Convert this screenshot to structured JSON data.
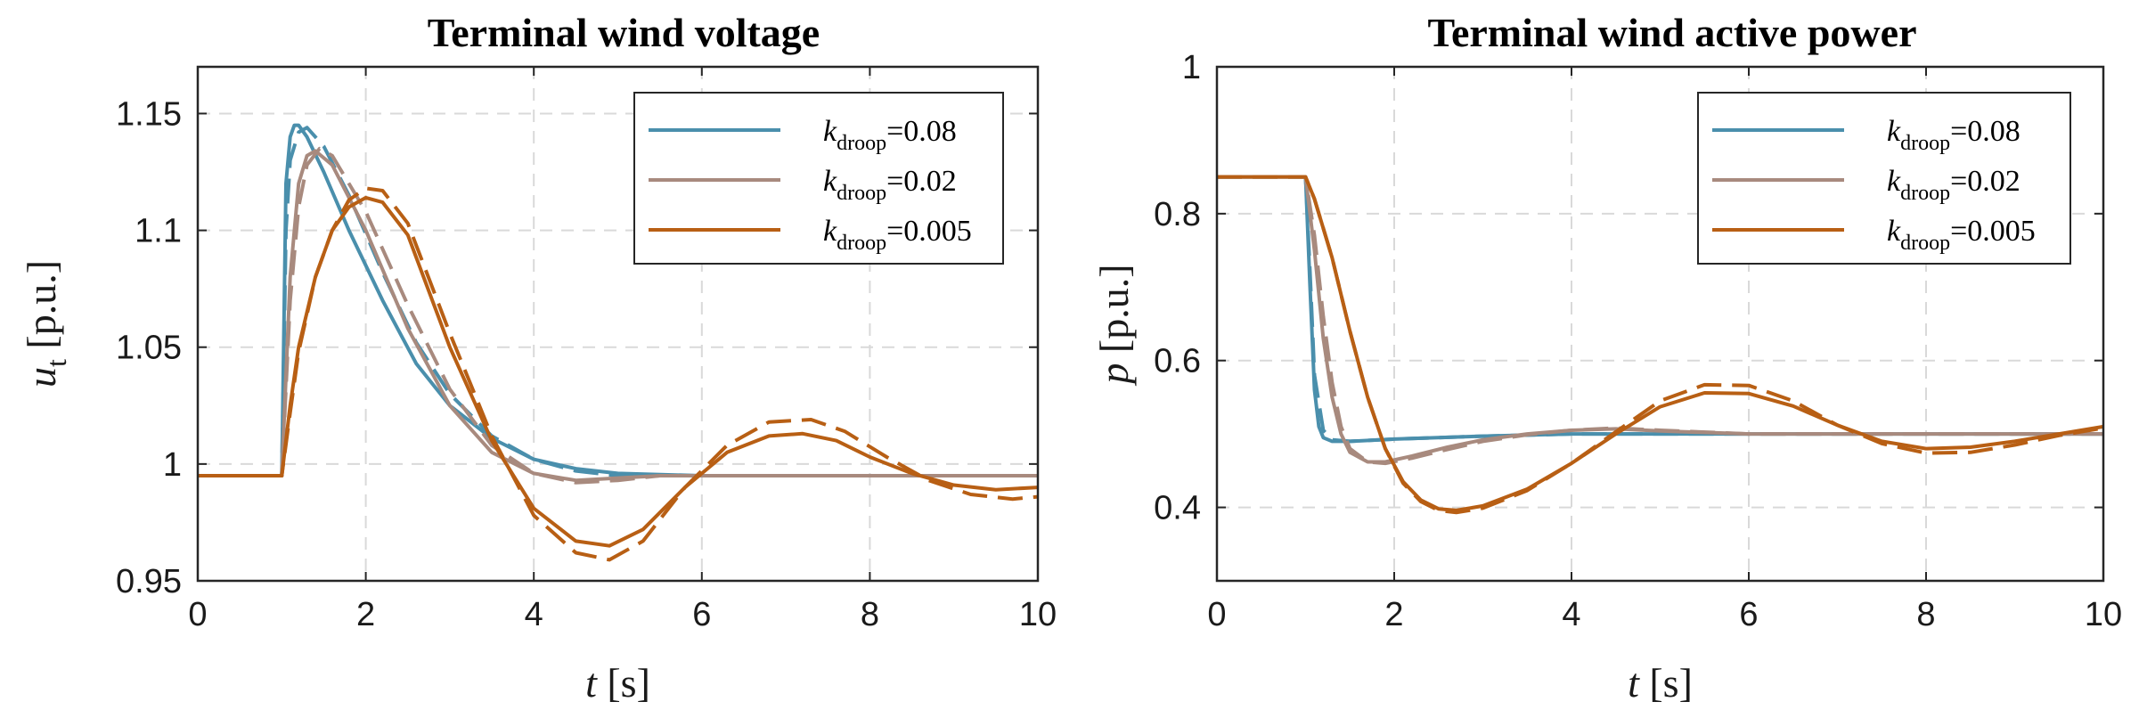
{
  "chart_data": [
    {
      "type": "line",
      "title": "Terminal wind voltage",
      "xlabel": {
        "var": "t",
        "unit": "[s]"
      },
      "ylabel": {
        "var": "u",
        "sub": "t",
        "unit": "[p.u.]"
      },
      "xlim": [
        0,
        10
      ],
      "ylim": [
        0.95,
        1.17
      ],
      "xticks": [
        "0",
        "2",
        "4",
        "6",
        "8",
        "10"
      ],
      "xtick_values": [
        0,
        2,
        4,
        6,
        8,
        10
      ],
      "yticks": [
        "0.95",
        "1",
        "1.05",
        "1.1",
        "1.15"
      ],
      "ytick_values": [
        0.95,
        1.0,
        1.05,
        1.1,
        1.15
      ],
      "grid": true,
      "legend_position": "top-right",
      "legend": [
        {
          "var": "k",
          "sub": "droop",
          "value": "=0.08",
          "color": "#4a8fac"
        },
        {
          "var": "k",
          "sub": "droop",
          "value": "=0.02",
          "color": "#a88a7e"
        },
        {
          "var": "k",
          "sub": "droop",
          "value": "=0.005",
          "color": "#b85f14"
        }
      ],
      "series": [
        {
          "color": "#4a8fac",
          "style": "solid",
          "x": [
            0,
            1.0,
            1.05,
            1.1,
            1.15,
            1.2,
            1.3,
            1.5,
            1.8,
            2.2,
            2.6,
            3.0,
            3.5,
            4.0,
            4.5,
            5.0,
            6.0,
            10.0
          ],
          "y": [
            0.995,
            0.995,
            1.12,
            1.14,
            1.145,
            1.145,
            1.14,
            1.125,
            1.1,
            1.07,
            1.043,
            1.025,
            1.011,
            1.002,
            0.998,
            0.996,
            0.995,
            0.995
          ]
        },
        {
          "color": "#4a8fac",
          "style": "dashed",
          "x": [
            0,
            1.0,
            1.05,
            1.1,
            1.2,
            1.3,
            1.5,
            1.8,
            2.2,
            2.6,
            3.0,
            3.5,
            4.0,
            4.5,
            5.0,
            6.0,
            10.0
          ],
          "y": [
            0.995,
            0.995,
            1.1,
            1.13,
            1.142,
            1.144,
            1.136,
            1.115,
            1.082,
            1.052,
            1.03,
            1.012,
            1.002,
            0.997,
            0.995,
            0.995,
            0.995
          ]
        },
        {
          "color": "#a88a7e",
          "style": "solid",
          "x": [
            0,
            1.0,
            1.1,
            1.2,
            1.3,
            1.4,
            1.6,
            2.0,
            2.5,
            3.0,
            3.5,
            4.0,
            4.5,
            5.0,
            5.5,
            6.0,
            7.0,
            10.0
          ],
          "y": [
            0.995,
            0.995,
            1.08,
            1.12,
            1.132,
            1.134,
            1.128,
            1.1,
            1.058,
            1.025,
            1.005,
            0.996,
            0.993,
            0.994,
            0.995,
            0.995,
            0.995,
            0.995
          ]
        },
        {
          "color": "#a88a7e",
          "style": "dashed",
          "x": [
            0,
            1.0,
            1.1,
            1.2,
            1.3,
            1.45,
            1.6,
            2.0,
            2.5,
            3.0,
            3.5,
            4.0,
            4.5,
            5.0,
            5.5,
            6.0,
            7.0,
            10.0
          ],
          "y": [
            0.995,
            0.995,
            1.07,
            1.11,
            1.128,
            1.135,
            1.132,
            1.108,
            1.068,
            1.032,
            1.008,
            0.996,
            0.992,
            0.993,
            0.995,
            0.995,
            0.995,
            0.995
          ]
        },
        {
          "color": "#b85f14",
          "style": "solid",
          "x": [
            0,
            1.0,
            1.1,
            1.2,
            1.4,
            1.6,
            1.8,
            2.0,
            2.2,
            2.5,
            3.0,
            3.5,
            4.0,
            4.5,
            4.9,
            5.3,
            5.8,
            6.3,
            6.8,
            7.2,
            7.6,
            8.0,
            8.5,
            9.0,
            9.5,
            10.0
          ],
          "y": [
            0.995,
            0.995,
            1.025,
            1.05,
            1.08,
            1.1,
            1.11,
            1.114,
            1.112,
            1.098,
            1.05,
            1.01,
            0.981,
            0.967,
            0.965,
            0.972,
            0.99,
            1.005,
            1.012,
            1.013,
            1.01,
            1.003,
            0.996,
            0.991,
            0.989,
            0.99
          ]
        },
        {
          "color": "#b85f14",
          "style": "dashed",
          "x": [
            0,
            1.0,
            1.1,
            1.2,
            1.4,
            1.6,
            1.8,
            2.0,
            2.2,
            2.5,
            3.0,
            3.5,
            4.0,
            4.5,
            4.9,
            5.3,
            5.8,
            6.3,
            6.8,
            7.3,
            7.7,
            8.2,
            8.7,
            9.2,
            9.7,
            10.0
          ],
          "y": [
            0.995,
            0.995,
            1.022,
            1.048,
            1.08,
            1.1,
            1.113,
            1.118,
            1.117,
            1.103,
            1.056,
            1.012,
            0.978,
            0.962,
            0.959,
            0.967,
            0.99,
            1.008,
            1.018,
            1.019,
            1.014,
            1.003,
            0.993,
            0.987,
            0.985,
            0.986
          ]
        }
      ]
    },
    {
      "type": "line",
      "title": "Terminal wind active power",
      "xlabel": {
        "var": "t",
        "unit": "[s]"
      },
      "ylabel": {
        "var": "p",
        "sub": "",
        "unit": "[p.u.]"
      },
      "xlim": [
        0,
        10
      ],
      "ylim": [
        0.3,
        1.0
      ],
      "xticks": [
        "0",
        "2",
        "4",
        "6",
        "8",
        "10"
      ],
      "xtick_values": [
        0,
        2,
        4,
        6,
        8,
        10
      ],
      "yticks": [
        "0.4",
        "0.6",
        "0.8",
        "1"
      ],
      "ytick_values": [
        0.4,
        0.6,
        0.8,
        1.0
      ],
      "grid": true,
      "legend_position": "top-right",
      "legend": [
        {
          "var": "k",
          "sub": "droop",
          "value": "=0.08",
          "color": "#4a8fac"
        },
        {
          "var": "k",
          "sub": "droop",
          "value": "=0.02",
          "color": "#a88a7e"
        },
        {
          "var": "k",
          "sub": "droop",
          "value": "=0.005",
          "color": "#b85f14"
        }
      ],
      "series": [
        {
          "color": "#4a8fac",
          "style": "solid",
          "x": [
            0,
            1.0,
            1.05,
            1.1,
            1.15,
            1.2,
            1.3,
            1.5,
            2.0,
            3.0,
            4.0,
            5.0,
            7.0,
            10.0
          ],
          "y": [
            0.85,
            0.85,
            0.7,
            0.56,
            0.51,
            0.495,
            0.49,
            0.49,
            0.493,
            0.497,
            0.5,
            0.5,
            0.5,
            0.5
          ]
        },
        {
          "color": "#4a8fac",
          "style": "dashed",
          "x": [
            0,
            1.0,
            1.05,
            1.1,
            1.2,
            1.3,
            1.5,
            2.0,
            3.0,
            4.0,
            5.0,
            7.0,
            10.0
          ],
          "y": [
            0.85,
            0.85,
            0.72,
            0.58,
            0.505,
            0.492,
            0.49,
            0.493,
            0.497,
            0.5,
            0.5,
            0.5,
            0.5
          ]
        },
        {
          "color": "#a88a7e",
          "style": "solid",
          "x": [
            0,
            1.0,
            1.1,
            1.2,
            1.3,
            1.4,
            1.5,
            1.7,
            1.9,
            2.2,
            2.6,
            3.0,
            3.5,
            4.0,
            4.5,
            5.0,
            6.0,
            7.0,
            10.0
          ],
          "y": [
            0.85,
            0.85,
            0.75,
            0.63,
            0.55,
            0.5,
            0.475,
            0.462,
            0.462,
            0.47,
            0.482,
            0.492,
            0.5,
            0.505,
            0.507,
            0.504,
            0.5,
            0.5,
            0.5
          ]
        },
        {
          "color": "#a88a7e",
          "style": "dashed",
          "x": [
            0,
            1.0,
            1.1,
            1.2,
            1.3,
            1.4,
            1.5,
            1.7,
            1.9,
            2.2,
            2.6,
            3.0,
            3.5,
            4.0,
            4.5,
            5.0,
            6.0,
            7.0,
            10.0
          ],
          "y": [
            0.85,
            0.85,
            0.77,
            0.66,
            0.57,
            0.51,
            0.48,
            0.462,
            0.46,
            0.467,
            0.479,
            0.49,
            0.499,
            0.505,
            0.508,
            0.505,
            0.5,
            0.5,
            0.5
          ]
        },
        {
          "color": "#b85f14",
          "style": "solid",
          "x": [
            0,
            1.0,
            1.1,
            1.3,
            1.5,
            1.7,
            1.9,
            2.1,
            2.3,
            2.5,
            2.7,
            3.0,
            3.5,
            4.0,
            4.5,
            5.0,
            5.5,
            6.0,
            6.5,
            7.0,
            7.5,
            8.0,
            8.5,
            9.0,
            9.5,
            10.0
          ],
          "y": [
            0.85,
            0.85,
            0.82,
            0.74,
            0.64,
            0.55,
            0.48,
            0.435,
            0.41,
            0.398,
            0.396,
            0.402,
            0.425,
            0.46,
            0.5,
            0.537,
            0.556,
            0.555,
            0.538,
            0.512,
            0.49,
            0.48,
            0.482,
            0.49,
            0.5,
            0.51
          ]
        },
        {
          "color": "#b85f14",
          "style": "dashed",
          "x": [
            0,
            1.0,
            1.1,
            1.3,
            1.5,
            1.7,
            1.9,
            2.1,
            2.3,
            2.5,
            2.7,
            3.0,
            3.5,
            4.0,
            4.5,
            5.0,
            5.5,
            6.0,
            6.5,
            7.0,
            7.5,
            8.0,
            8.5,
            9.0,
            9.5,
            10.0
          ],
          "y": [
            0.85,
            0.85,
            0.82,
            0.74,
            0.64,
            0.55,
            0.48,
            0.433,
            0.408,
            0.396,
            0.393,
            0.399,
            0.423,
            0.46,
            0.503,
            0.545,
            0.567,
            0.566,
            0.545,
            0.512,
            0.487,
            0.474,
            0.475,
            0.485,
            0.498,
            0.508
          ]
        }
      ]
    }
  ]
}
